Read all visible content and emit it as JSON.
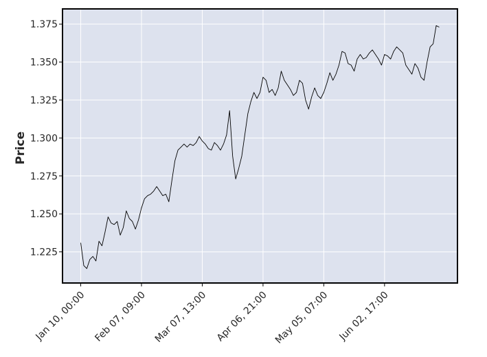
{
  "chart_data": {
    "type": "line",
    "title": "",
    "xlabel": "",
    "ylabel": "Price",
    "colors": {
      "plot_background": "#dde2ee",
      "grid": "#ffffff",
      "line": "#000000",
      "frame": "#000000"
    },
    "grid": true,
    "x_ticks": [
      "Jan 10, 00:00",
      "Feb 07, 09:00",
      "Mar 07, 13:00",
      "Apr 06, 21:00",
      "May 05, 07:00",
      "Jun 02, 17:00"
    ],
    "x_tick_index": [
      0,
      20,
      40,
      60,
      80,
      100
    ],
    "xlim_index": [
      -6,
      124
    ],
    "y_ticks": [
      1.225,
      1.25,
      1.275,
      1.3,
      1.325,
      1.35,
      1.375
    ],
    "y_tick_labels": [
      "1.225",
      "1.250",
      "1.275",
      "1.300",
      "1.325",
      "1.350",
      "1.375"
    ],
    "ylim": [
      1.2045,
      1.385
    ],
    "series": [
      {
        "name": "",
        "x_index": [
          0,
          1,
          2,
          3,
          4,
          5,
          6,
          7,
          8,
          9,
          10,
          11,
          12,
          13,
          14,
          15,
          16,
          17,
          18,
          19,
          20,
          21,
          22,
          23,
          24,
          25,
          26,
          27,
          28,
          29,
          30,
          31,
          32,
          33,
          34,
          35,
          36,
          37,
          38,
          39,
          40,
          41,
          42,
          43,
          44,
          45,
          46,
          47,
          48,
          49,
          50,
          51,
          52,
          53,
          54,
          55,
          56,
          57,
          58,
          59,
          60,
          61,
          62,
          63,
          64,
          65,
          66,
          67,
          68,
          69,
          70,
          71,
          72,
          73,
          74,
          75,
          76,
          77,
          78,
          79,
          80,
          81,
          82,
          83,
          84,
          85,
          86,
          87,
          88,
          89,
          90,
          91,
          92,
          93,
          94,
          95,
          96,
          97,
          98,
          99,
          100,
          101,
          102,
          103,
          104,
          105,
          106,
          107,
          108,
          109,
          110,
          111,
          112,
          113,
          114,
          115,
          116,
          117,
          118
        ],
        "values": [
          1.231,
          1.216,
          1.214,
          1.22,
          1.222,
          1.219,
          1.232,
          1.229,
          1.238,
          1.248,
          1.244,
          1.243,
          1.245,
          1.236,
          1.241,
          1.252,
          1.247,
          1.245,
          1.24,
          1.246,
          1.254,
          1.26,
          1.262,
          1.263,
          1.265,
          1.268,
          1.265,
          1.262,
          1.263,
          1.258,
          1.272,
          1.285,
          1.292,
          1.294,
          1.296,
          1.294,
          1.296,
          1.295,
          1.297,
          1.301,
          1.298,
          1.296,
          1.293,
          1.292,
          1.297,
          1.295,
          1.292,
          1.296,
          1.302,
          1.318,
          1.288,
          1.273,
          1.28,
          1.288,
          1.302,
          1.316,
          1.324,
          1.33,
          1.326,
          1.33,
          1.34,
          1.338,
          1.33,
          1.332,
          1.328,
          1.333,
          1.344,
          1.338,
          1.335,
          1.332,
          1.328,
          1.33,
          1.338,
          1.336,
          1.325,
          1.319,
          1.327,
          1.333,
          1.328,
          1.326,
          1.33,
          1.336,
          1.343,
          1.338,
          1.342,
          1.348,
          1.357,
          1.356,
          1.349,
          1.348,
          1.344,
          1.352,
          1.355,
          1.352,
          1.353,
          1.356,
          1.358,
          1.355,
          1.352,
          1.348,
          1.355,
          1.354,
          1.352,
          1.357,
          1.36,
          1.358,
          1.356,
          1.348,
          1.345,
          1.342,
          1.349,
          1.346,
          1.34,
          1.338,
          1.35,
          1.36,
          1.362,
          1.374,
          1.373
        ]
      }
    ]
  }
}
